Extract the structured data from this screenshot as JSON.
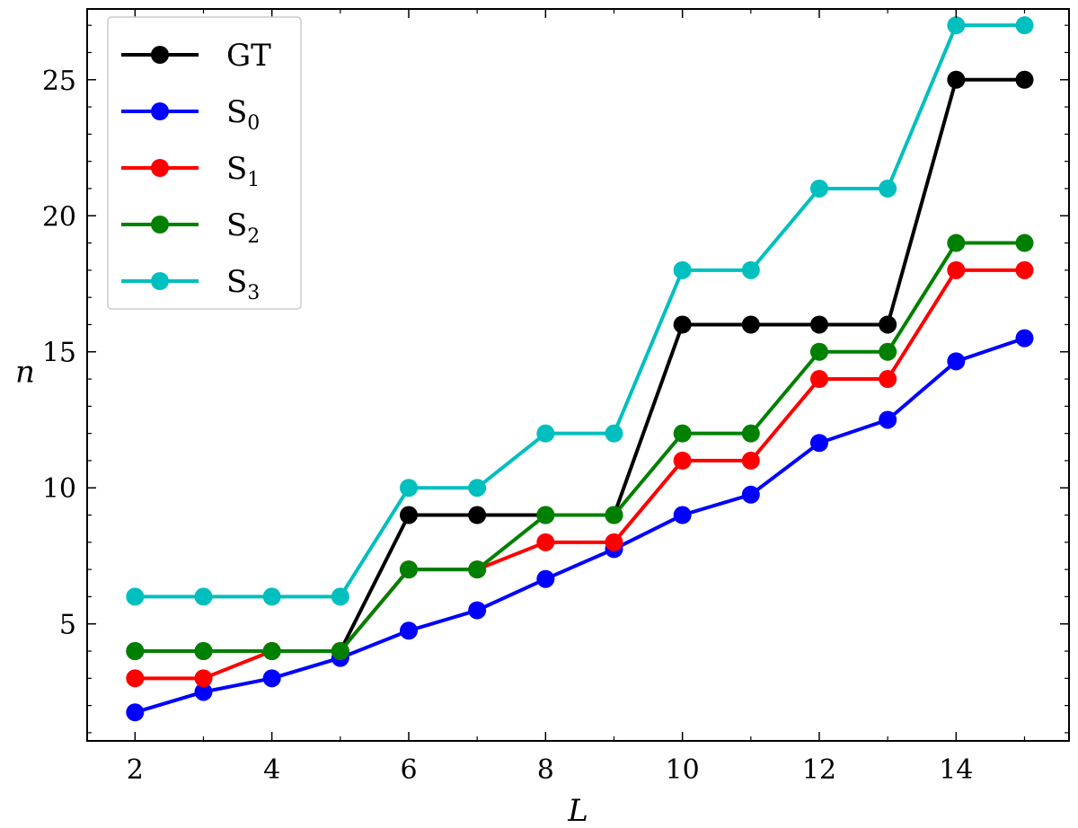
{
  "chart_data": {
    "type": "line",
    "xlabel": "L",
    "ylabel": "n",
    "xlim": [
      1.3,
      15.65
    ],
    "ylim": [
      0.7,
      27.6
    ],
    "xticks": [
      2,
      4,
      6,
      8,
      10,
      12,
      14
    ],
    "yticks": [
      5,
      10,
      15,
      20,
      25
    ],
    "x_minor_step": 1,
    "y_minor_step": 1,
    "legend_location": "upper left",
    "x": [
      2,
      3,
      4,
      5,
      6,
      7,
      8,
      9,
      10,
      11,
      12,
      13,
      14,
      15
    ],
    "series": [
      {
        "name": "GT",
        "base": "GT",
        "sub": "",
        "color": "#000000",
        "values": [
          4,
          4,
          4,
          4,
          9,
          9,
          9,
          9,
          16,
          16,
          16,
          16,
          25,
          25
        ]
      },
      {
        "name": "S0",
        "base": "S",
        "sub": "0",
        "color": "#0000ff",
        "values": [
          1.75,
          2.5,
          3,
          3.75,
          4.75,
          5.5,
          6.65,
          7.75,
          9,
          9.75,
          11.65,
          12.5,
          14.65,
          15.5
        ]
      },
      {
        "name": "S1",
        "base": "S",
        "sub": "1",
        "color": "#ff0000",
        "values": [
          3,
          3,
          4,
          4,
          7,
          7,
          8,
          8,
          11,
          11,
          14,
          14,
          18,
          18
        ]
      },
      {
        "name": "S2",
        "base": "S",
        "sub": "2",
        "color": "#008000",
        "values": [
          4,
          4,
          4,
          4,
          7,
          7,
          9,
          9,
          12,
          12,
          15,
          15,
          19,
          19
        ]
      },
      {
        "name": "S3",
        "base": "S",
        "sub": "3",
        "color": "#00bfbf",
        "values": [
          6,
          6,
          6,
          6,
          10,
          10,
          12,
          12,
          18,
          18,
          21,
          21,
          27,
          27
        ]
      }
    ]
  }
}
